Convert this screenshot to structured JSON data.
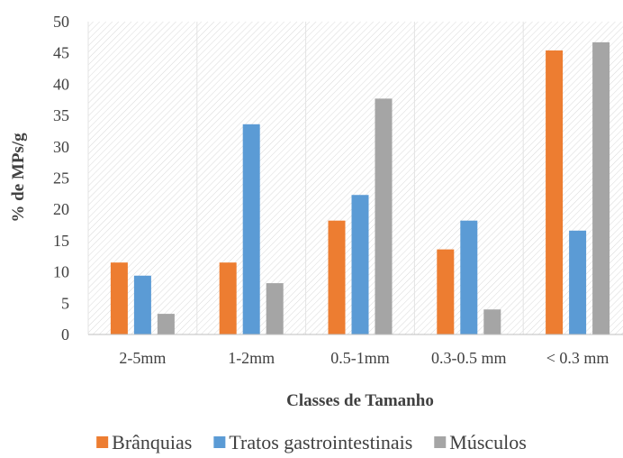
{
  "chart_data": {
    "type": "bar",
    "title": "",
    "xlabel": "Classes de Tamanho",
    "ylabel": "% de MPs/g",
    "ylim": [
      0,
      50
    ],
    "yticks": [
      0,
      5,
      10,
      15,
      20,
      25,
      30,
      35,
      40,
      45,
      50
    ],
    "grid": false,
    "legend_position": "bottom",
    "categories": [
      "2-5mm",
      "1-2mm",
      "0.5-1mm",
      "0.3-0.5 mm",
      "< 0.3 mm"
    ],
    "series": [
      {
        "name": "Brânquias",
        "color": "#ED7D31",
        "values": [
          11.5,
          11.5,
          18.2,
          13.6,
          45.4
        ]
      },
      {
        "name": "Tratos gastrointestinais",
        "color": "#5B9BD5",
        "values": [
          9.4,
          33.6,
          22.3,
          18.2,
          16.6
        ]
      },
      {
        "name": "Músculos",
        "color": "#A5A5A5",
        "values": [
          3.3,
          8.2,
          37.7,
          4.0,
          46.7
        ]
      }
    ]
  }
}
